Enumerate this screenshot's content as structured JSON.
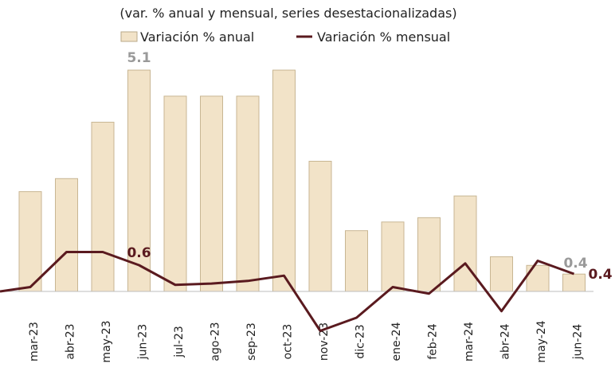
{
  "chart_data": {
    "type": "bar",
    "subtitle": "(var. % anual y mensual, series desestacionalizadas)",
    "categories": [
      "mar-23",
      "abr-23",
      "may-23",
      "jun-23",
      "jul-23",
      "ago-23",
      "sep-23",
      "oct-23",
      "nov-23",
      "dic-23",
      "ene-24",
      "feb-24",
      "mar-24",
      "abr-24",
      "may-24",
      "jun-24"
    ],
    "series": [
      {
        "name": "Variación % anual",
        "type": "bar",
        "color": "#f2e3c8",
        "values": [
          2.3,
          2.6,
          3.9,
          5.1,
          4.5,
          4.5,
          4.5,
          5.1,
          3.0,
          1.4,
          1.6,
          1.7,
          2.2,
          0.8,
          0.6,
          0.4
        ]
      },
      {
        "name": "Variación % mensual",
        "type": "line",
        "color": "#5a1a1f",
        "values": [
          0.1,
          0.9,
          0.9,
          0.6,
          0.15,
          0.18,
          0.24,
          0.36,
          -0.9,
          -0.6,
          0.1,
          -0.05,
          0.64,
          -0.45,
          0.7,
          0.4
        ]
      }
    ],
    "data_labels": [
      {
        "series": "Variación % anual",
        "category": "jun-23",
        "text": "5.1"
      },
      {
        "series": "Variación % mensual",
        "category": "jun-23",
        "text": "0.6"
      },
      {
        "series": "Variación % anual",
        "category": "jun-24",
        "text": "0.4"
      },
      {
        "series": "Variación % mensual",
        "category": "jun-24",
        "text": "0.4"
      }
    ],
    "legend_position": "top",
    "grid": false
  }
}
